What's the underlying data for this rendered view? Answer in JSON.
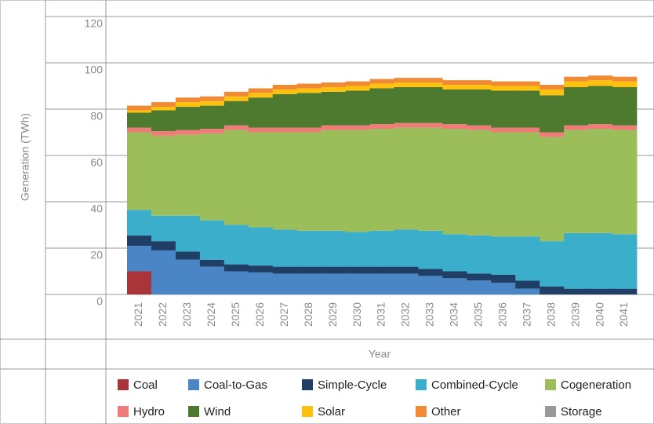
{
  "chart_data": {
    "type": "stacked_bar",
    "y_label": "Generation (TWh)",
    "x_label": "Year",
    "categories": [
      "2021",
      "2022",
      "2023",
      "2024",
      "2025",
      "2026",
      "2027",
      "2028",
      "2029",
      "2030",
      "2031",
      "2032",
      "2033",
      "2034",
      "2035",
      "2036",
      "2037",
      "2038",
      "2039",
      "2040",
      "2041"
    ],
    "ylim": [
      0,
      120
    ],
    "yticks": [
      0,
      20,
      40,
      60,
      80,
      100,
      120
    ],
    "grid": true,
    "series": [
      {
        "name": "Coal",
        "color": "#a93439",
        "values": [
          10,
          0,
          0,
          0,
          0,
          0,
          0,
          0,
          0,
          0,
          0,
          0,
          0,
          0,
          0,
          0,
          0,
          0,
          0,
          0,
          0
        ]
      },
      {
        "name": "Coal-to-Gas",
        "color": "#4a86c5",
        "values": [
          11,
          19,
          15,
          12,
          10,
          9.5,
          9,
          9,
          9,
          9,
          9,
          9,
          8,
          7,
          6,
          5,
          2.5,
          0,
          0,
          0,
          0
        ]
      },
      {
        "name": "Simple-Cycle",
        "color": "#1f3f66",
        "values": [
          4.5,
          4,
          3.5,
          3,
          3,
          3,
          3,
          3,
          3,
          3,
          3,
          3,
          3,
          3,
          3,
          3.5,
          3.5,
          3.5,
          2.5,
          2.5,
          2.5
        ]
      },
      {
        "name": "Combined-Cycle",
        "color": "#3aaecb",
        "values": [
          11,
          11,
          15.5,
          17,
          17,
          16.5,
          16,
          15.5,
          15.5,
          15,
          15.5,
          16,
          16.5,
          16,
          16.5,
          16.5,
          19,
          19.5,
          24,
          24,
          23.5
        ]
      },
      {
        "name": "Cogeneration",
        "color": "#9cbe5a",
        "values": [
          33.5,
          34.5,
          35,
          37.5,
          41,
          41,
          42,
          42.5,
          43.5,
          44,
          44,
          44,
          44.5,
          45.5,
          45.5,
          45,
          45,
          45,
          44.5,
          45,
          45
        ]
      },
      {
        "name": "Hydro",
        "color": "#f07c7a",
        "values": [
          2,
          2,
          2,
          2,
          2,
          2,
          2,
          2,
          2,
          2,
          2,
          2,
          2,
          2,
          2,
          2,
          2,
          2,
          2,
          2,
          2
        ]
      },
      {
        "name": "Wind",
        "color": "#4d7a2e",
        "values": [
          6.5,
          9,
          10,
          10,
          10.5,
          13,
          14.5,
          15,
          14.5,
          15,
          15.5,
          15.5,
          15.5,
          15,
          15.5,
          16,
          16,
          16,
          16.5,
          16.5,
          16.5
        ]
      },
      {
        "name": "Solar",
        "color": "#fec20e",
        "values": [
          1,
          1.5,
          2,
          2,
          2,
          2,
          2,
          2,
          2,
          2,
          2,
          2,
          2,
          2,
          2,
          2,
          2,
          2.5,
          2.5,
          2.5,
          2.5
        ]
      },
      {
        "name": "Other",
        "color": "#f08a35",
        "values": [
          2,
          2,
          2,
          2,
          2,
          2,
          2,
          2,
          2,
          2,
          2,
          2,
          2,
          2,
          2,
          2,
          2,
          2,
          2,
          2,
          2
        ]
      },
      {
        "name": "Storage",
        "color": "#999999",
        "values": [
          0,
          0,
          0,
          0,
          0,
          0,
          0,
          0,
          0,
          0,
          0,
          0,
          0,
          0,
          0,
          0,
          0,
          0,
          0,
          0,
          0
        ]
      }
    ]
  }
}
